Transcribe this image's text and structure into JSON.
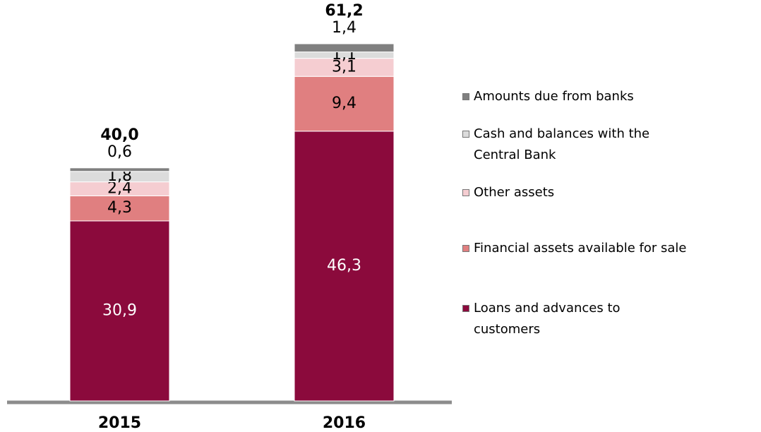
{
  "chart_data": {
    "type": "stacked_bar",
    "categories": [
      "2015",
      "2016"
    ],
    "series": [
      {
        "name": "Loans and advances to customers",
        "color": "#8b0a3c",
        "values": [
          30.9,
          46.3
        ],
        "value_labels": [
          "30,9",
          "46,3"
        ]
      },
      {
        "name": "Financial assets available for sale",
        "color": "#e07f80",
        "values": [
          4.3,
          9.4
        ],
        "value_labels": [
          "4,3",
          "9,4"
        ]
      },
      {
        "name": "Other assets",
        "color": "#f5cdd1",
        "values": [
          2.4,
          3.1
        ],
        "value_labels": [
          "2,4",
          "3,1"
        ]
      },
      {
        "name": "Cash and balances with the Central Bank",
        "color": "#dcdcdc",
        "values": [
          1.8,
          1.1
        ],
        "value_labels": [
          "1,8",
          "1,1"
        ]
      },
      {
        "name": "Amounts due from banks",
        "color": "#808080",
        "values": [
          0.6,
          1.4
        ],
        "value_labels": [
          "0,6",
          "1,4"
        ]
      }
    ],
    "totals": [
      40.0,
      61.2
    ],
    "total_labels": [
      "40,0",
      "61,2"
    ],
    "legend": "right"
  }
}
